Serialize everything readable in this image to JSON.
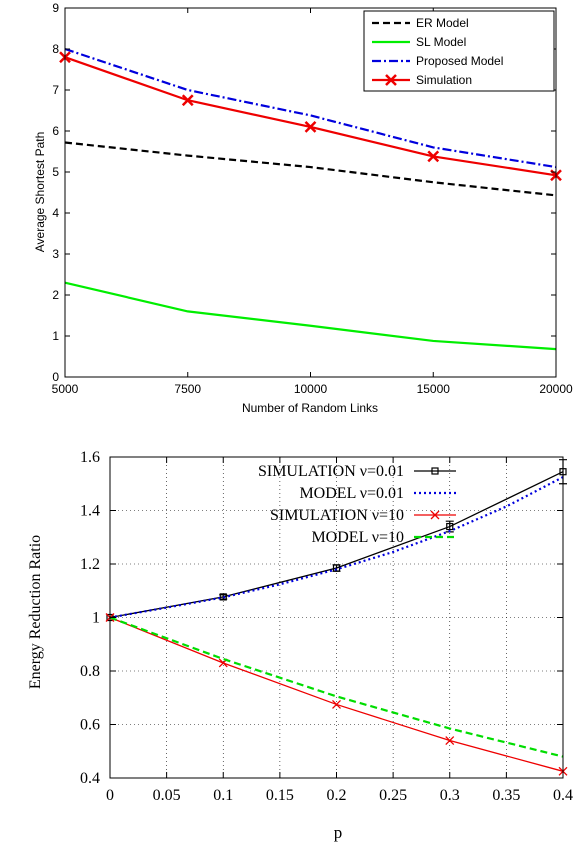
{
  "chart_data": [
    {
      "type": "line",
      "title": "",
      "xlabel": "Number of Random Links",
      "ylabel": "Average Shortest Path",
      "x_categories": [
        "5000",
        "7500",
        "10000",
        "15000",
        "20000"
      ],
      "ylim": [
        0,
        9
      ],
      "yticks": [
        "0",
        "1",
        "2",
        "3",
        "4",
        "5",
        "6",
        "7",
        "8",
        "9"
      ],
      "grid": false,
      "legend_position": "top-right",
      "series": [
        {
          "name": "ER Model",
          "color": "#000000",
          "dash": "dashed",
          "marker": "none",
          "values": [
            5.72,
            5.4,
            5.12,
            4.75,
            4.43
          ]
        },
        {
          "name": "SL Model",
          "color": "#00ee00",
          "dash": "solid",
          "marker": "none",
          "values": [
            2.3,
            1.6,
            1.25,
            0.88,
            0.68
          ]
        },
        {
          "name": "Proposed Model",
          "color": "#0000dd",
          "dash": "dashdot",
          "marker": "none",
          "values": [
            8.0,
            7.0,
            6.38,
            5.6,
            5.12
          ]
        },
        {
          "name": "Simulation",
          "color": "#ee0000",
          "dash": "solid",
          "marker": "x",
          "values": [
            7.8,
            6.75,
            6.1,
            5.38,
            4.92
          ]
        }
      ]
    },
    {
      "type": "line",
      "title": "",
      "xlabel": "p",
      "ylabel": "Energy Reduction Ratio",
      "xlim": [
        0,
        0.4
      ],
      "ylim": [
        0.4,
        1.6
      ],
      "xticks": [
        "0",
        "0.05",
        "0.1",
        "0.15",
        "0.2",
        "0.25",
        "0.3",
        "0.35",
        "0.4"
      ],
      "yticks": [
        "0.4",
        "0.6",
        "0.8",
        "1",
        "1.2",
        "1.4",
        "1.6"
      ],
      "grid": true,
      "legend_position": "top-left",
      "series": [
        {
          "name": "SIMULATION ν=0.01",
          "color": "#000000",
          "dash": "solid",
          "marker": "square",
          "points": [
            [
              0,
              1.0
            ],
            [
              0.1,
              1.077
            ],
            [
              0.2,
              1.185
            ],
            [
              0.3,
              1.34
            ],
            [
              0.4,
              1.545
            ]
          ],
          "errors": [
            0,
            0.008,
            0.012,
            0.02,
            0.045
          ]
        },
        {
          "name": "MODEL ν=0.01",
          "color": "#0000dd",
          "dash": "dotted",
          "marker": "none",
          "points": [
            [
              0,
              1.0
            ],
            [
              0.05,
              1.037
            ],
            [
              0.1,
              1.075
            ],
            [
              0.15,
              1.124
            ],
            [
              0.2,
              1.18
            ],
            [
              0.25,
              1.245
            ],
            [
              0.3,
              1.323
            ],
            [
              0.35,
              1.415
            ],
            [
              0.4,
              1.525
            ]
          ]
        },
        {
          "name": "SIMULATION ν=10",
          "color": "#ee0000",
          "dash": "solid",
          "marker": "x",
          "points": [
            [
              0,
              1.0
            ],
            [
              0.1,
              0.83
            ],
            [
              0.2,
              0.675
            ],
            [
              0.3,
              0.54
            ],
            [
              0.4,
              0.425
            ]
          ]
        },
        {
          "name": "MODEL ν=10",
          "color": "#00dd00",
          "dash": "dashed",
          "marker": "none",
          "points": [
            [
              0,
              1.0
            ],
            [
              0.1,
              0.845
            ],
            [
              0.2,
              0.705
            ],
            [
              0.3,
              0.585
            ],
            [
              0.4,
              0.48
            ]
          ]
        }
      ]
    }
  ]
}
